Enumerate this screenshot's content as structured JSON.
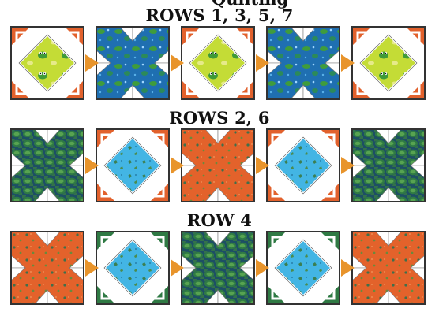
{
  "top_fragment": "Quilting",
  "sections": [
    {
      "title": "ROWS 1, 3, 5, 7",
      "blocks": [
        {
          "kind": "diamond",
          "fabric": "frog-lime",
          "corner": "orange"
        },
        {
          "kind": "cross",
          "fabric": "pond-blue"
        },
        {
          "kind": "diamond",
          "fabric": "frog-lime",
          "corner": "orange"
        },
        {
          "kind": "cross",
          "fabric": "pond-blue"
        },
        {
          "kind": "diamond",
          "fabric": "frog-lime",
          "corner": "orange"
        }
      ]
    },
    {
      "title": "ROWS 2, 6",
      "blocks": [
        {
          "kind": "cross",
          "fabric": "lilypad-green"
        },
        {
          "kind": "diamond",
          "fabric": "sky-blue",
          "corner": "orange"
        },
        {
          "kind": "cross",
          "fabric": "dotted-orange"
        },
        {
          "kind": "diamond",
          "fabric": "sky-blue",
          "corner": "orange"
        },
        {
          "kind": "cross",
          "fabric": "lilypad-green"
        }
      ]
    },
    {
      "title": "ROW 4",
      "blocks": [
        {
          "kind": "cross",
          "fabric": "dotted-orange"
        },
        {
          "kind": "diamond",
          "fabric": "sky-blue",
          "corner": "green"
        },
        {
          "kind": "cross",
          "fabric": "lilypad-green"
        },
        {
          "kind": "diamond",
          "fabric": "sky-blue",
          "corner": "green"
        },
        {
          "kind": "cross",
          "fabric": "dotted-orange"
        }
      ]
    }
  ],
  "colors": {
    "arrow": "#e8942b",
    "border": "#333333",
    "corner_orange": "#e2612c",
    "corner_green": "#2f7a44"
  }
}
